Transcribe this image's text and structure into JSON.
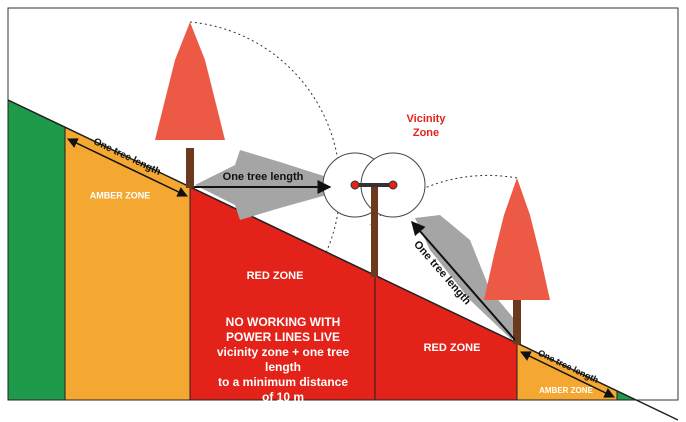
{
  "labels": {
    "vicinity_zone": [
      "Vicinity",
      "Zone"
    ],
    "tree_length_left": "One tree length",
    "amber_zone_left": "AMBER ZONE",
    "tree_length_horizontal": "One tree length",
    "red_zone_left": "RED ZONE",
    "warning": [
      "NO WORKING WITH",
      "POWER LINES LIVE",
      "vicinity zone + one tree",
      "length",
      "to a minimum distance",
      "of 10 m"
    ],
    "tree_length_diagonal": "One tree length",
    "red_zone_right": "RED ZONE",
    "tree_length_right": "One tree length",
    "amber_zone_right": "AMBER ZONE"
  }
}
